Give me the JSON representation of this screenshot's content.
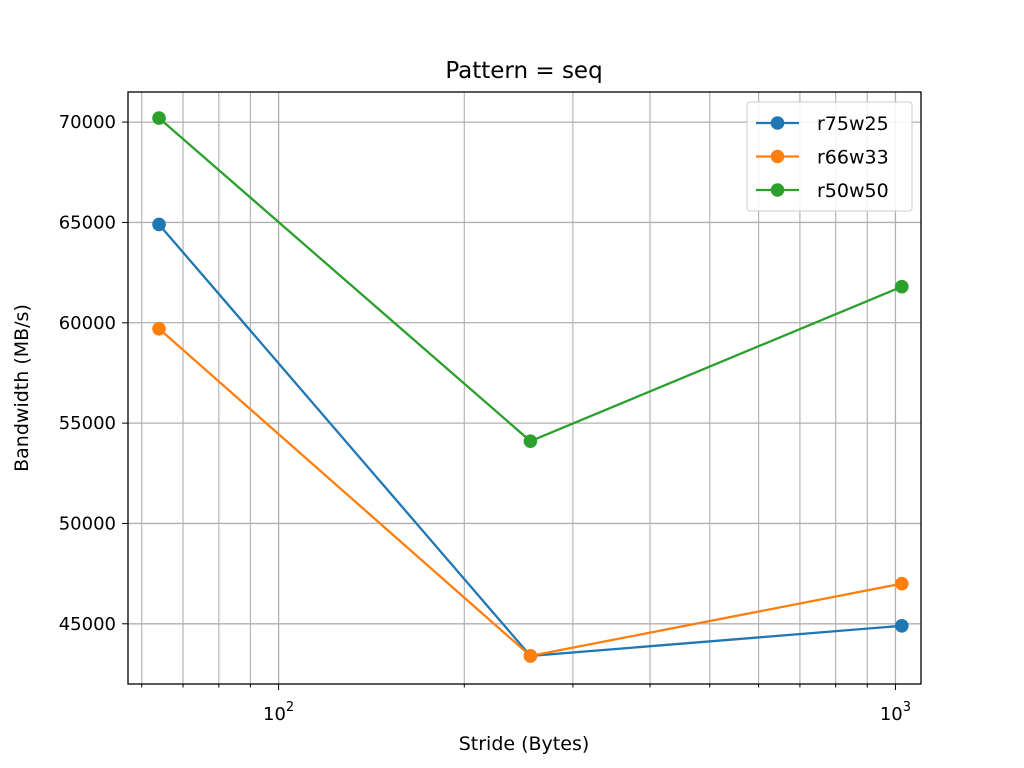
{
  "chart_data": {
    "type": "line",
    "title": "Pattern = seq",
    "xlabel": "Stride (Bytes)",
    "ylabel": "Bandwidth (MB/s)",
    "x": [
      64,
      256,
      1024
    ],
    "xscale": "log",
    "xlim": [
      57,
      1100
    ],
    "ylim": [
      42000,
      71500
    ],
    "x_major_ticks": [
      {
        "value": 100,
        "base": "10",
        "exp": "2"
      },
      {
        "value": 1000,
        "base": "10",
        "exp": "3"
      }
    ],
    "y_ticks": [
      45000,
      50000,
      55000,
      60000,
      65000,
      70000
    ],
    "grid": true,
    "legend_position": "top-right",
    "series": [
      {
        "name": "r75w25",
        "color": "#1f77b4",
        "values": [
          64900,
          43400,
          44900
        ]
      },
      {
        "name": "r66w33",
        "color": "#ff7f0e",
        "values": [
          59700,
          43400,
          47000
        ]
      },
      {
        "name": "r50w50",
        "color": "#2ca02c",
        "values": [
          70200,
          54100,
          61800
        ]
      }
    ]
  }
}
